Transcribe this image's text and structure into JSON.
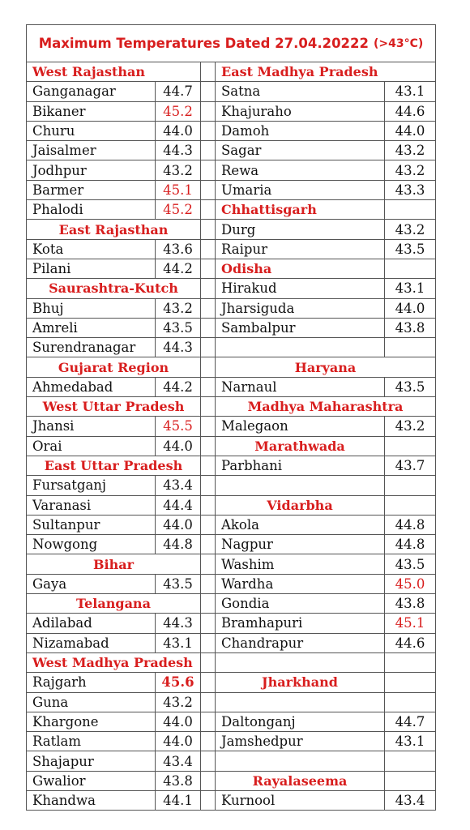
{
  "title": "Maximum Temperatures Dated 27.04.20222",
  "title_suffix": "(>43°C)",
  "accent_color": "#d81e1e",
  "rows": [
    {
      "l": {
        "header": "West Rajasthan",
        "align": "left"
      },
      "r": {
        "header": "East Madhya Pradesh",
        "align": "left"
      }
    },
    {
      "l": {
        "name": "Ganganagar",
        "value": "44.7"
      },
      "r": {
        "name": "Satna",
        "value": "43.1"
      }
    },
    {
      "l": {
        "name": "Bikaner",
        "value": "45.2",
        "red": true
      },
      "r": {
        "name": "Khajuraho",
        "value": "44.6"
      }
    },
    {
      "l": {
        "name": "Churu",
        "value": "44.0"
      },
      "r": {
        "name": "Damoh",
        "value": "44.0"
      }
    },
    {
      "l": {
        "name": "Jaisalmer",
        "value": "44.3"
      },
      "r": {
        "name": " Sagar",
        "value": "43.2"
      }
    },
    {
      "l": {
        "name": "Jodhpur",
        "value": "43.2"
      },
      "r": {
        "name": "Rewa",
        "value": "43.2"
      }
    },
    {
      "l": {
        "name": "Barmer",
        "value": "45.1",
        "red": true
      },
      "r": {
        "name": "Umaria",
        "value": "43.3"
      }
    },
    {
      "l": {
        "name": " Phalodi",
        "value": "45.2",
        "red": true
      },
      "r": {
        "hname": "Chhattisgarh",
        "value": ""
      }
    },
    {
      "l": {
        "header": "East Rajasthan"
      },
      "r": {
        "name": "Durg",
        "value": "43.2"
      }
    },
    {
      "l": {
        "name": "Kota",
        "value": "43.6"
      },
      "r": {
        "name": "Raipur",
        "value": "43.5"
      }
    },
    {
      "l": {
        "name": "Pilani",
        "value": "44.2"
      },
      "r": {
        "hname": "Odisha",
        "value": ""
      }
    },
    {
      "l": {
        "header": "Saurashtra-Kutch"
      },
      "r": {
        "name": "Hirakud",
        "value": "43.1"
      }
    },
    {
      "l": {
        "name": "Bhuj",
        "value": "43.2"
      },
      "r": {
        "name": "Jharsiguda",
        "value": "44.0"
      }
    },
    {
      "l": {
        "name": "Amreli",
        "value": "43.5"
      },
      "r": {
        "name": "Sambalpur",
        "value": "43.8"
      }
    },
    {
      "l": {
        "name": "Surendranagar",
        "value": "44.3"
      },
      "r": {
        "name": "",
        "value": ""
      }
    },
    {
      "l": {
        "header": "Gujarat Region"
      },
      "r": {
        "header": "Haryana"
      }
    },
    {
      "l": {
        "name": "Ahmedabad",
        "value": "44.2"
      },
      "r": {
        "name": "Narnaul",
        "value": "43.5"
      }
    },
    {
      "l": {
        "header": "West Uttar Pradesh"
      },
      "r": {
        "header": "Madhya Maharashtra"
      }
    },
    {
      "l": {
        "name": "Jhansi",
        "value": "45.5",
        "red": true
      },
      "r": {
        "name": " Malegaon",
        "value": "43.2"
      }
    },
    {
      "l": {
        "name": " Orai",
        "value": "44.0"
      },
      "r": {
        "hcenter": "Marathwada",
        "value": ""
      }
    },
    {
      "l": {
        "header": "East Uttar Pradesh"
      },
      "r": {
        "name": "Parbhani",
        "value": "43.7"
      }
    },
    {
      "l": {
        "name": "Fursatganj",
        "value": "43.4"
      },
      "r": {
        "name": "",
        "value": ""
      }
    },
    {
      "l": {
        "name": "Varanasi",
        "value": "44.4"
      },
      "r": {
        "hcenter": "Vidarbha",
        "value": ""
      }
    },
    {
      "l": {
        "name": " Sultanpur",
        "value": "44.0"
      },
      "r": {
        "name": "Akola",
        "value": "44.8"
      }
    },
    {
      "l": {
        "name": "Nowgong",
        "value": "44.8"
      },
      "r": {
        "name": "Nagpur",
        "value": "44.8"
      }
    },
    {
      "l": {
        "header": "Bihar"
      },
      "r": {
        "name": "Washim",
        "value": "43.5"
      }
    },
    {
      "l": {
        "name": "Gaya",
        "value": "43.5"
      },
      "r": {
        "name": "Wardha",
        "value": "45.0",
        "red": true
      }
    },
    {
      "l": {
        "header": "Telangana"
      },
      "r": {
        "name": "Gondia",
        "value": "43.8"
      }
    },
    {
      "l": {
        "name": "Adilabad",
        "value": "44.3"
      },
      "r": {
        "name": "Bramhapuri",
        "value": "45.1",
        "red": true
      }
    },
    {
      "l": {
        "name": " Nizamabad",
        "value": "43.1"
      },
      "r": {
        "name": "Chandrapur",
        "value": "44.6"
      }
    },
    {
      "l": {
        "header": "West Madhya Pradesh",
        "align": "left"
      },
      "r": {
        "name": "",
        "value": ""
      }
    },
    {
      "l": {
        "name": "Rajgarh",
        "value": "45.6",
        "red": true,
        "bold": true
      },
      "r": {
        "hcenter": "Jharkhand",
        "value": ""
      }
    },
    {
      "l": {
        "name": "Guna",
        "value": "43.2"
      },
      "r": {
        "name": "",
        "value": ""
      }
    },
    {
      "l": {
        "name": "Khargone",
        "value": "44.0"
      },
      "r": {
        "name": "Daltonganj",
        "value": "44.7"
      }
    },
    {
      "l": {
        "name": "Ratlam",
        "value": "44.0"
      },
      "r": {
        "name": "Jamshedpur",
        "value": "43.1"
      }
    },
    {
      "l": {
        "name": "Shajapur",
        "value": "43.4"
      },
      "r": {
        "name": "",
        "value": ""
      }
    },
    {
      "l": {
        "name": "Gwalior",
        "value": "43.8"
      },
      "r": {
        "hcenter": "Rayalaseema",
        "value": ""
      }
    },
    {
      "l": {
        "name": "Khandwa",
        "value": "44.1"
      },
      "r": {
        "name": "Kurnool",
        "value": "43.4"
      }
    }
  ]
}
